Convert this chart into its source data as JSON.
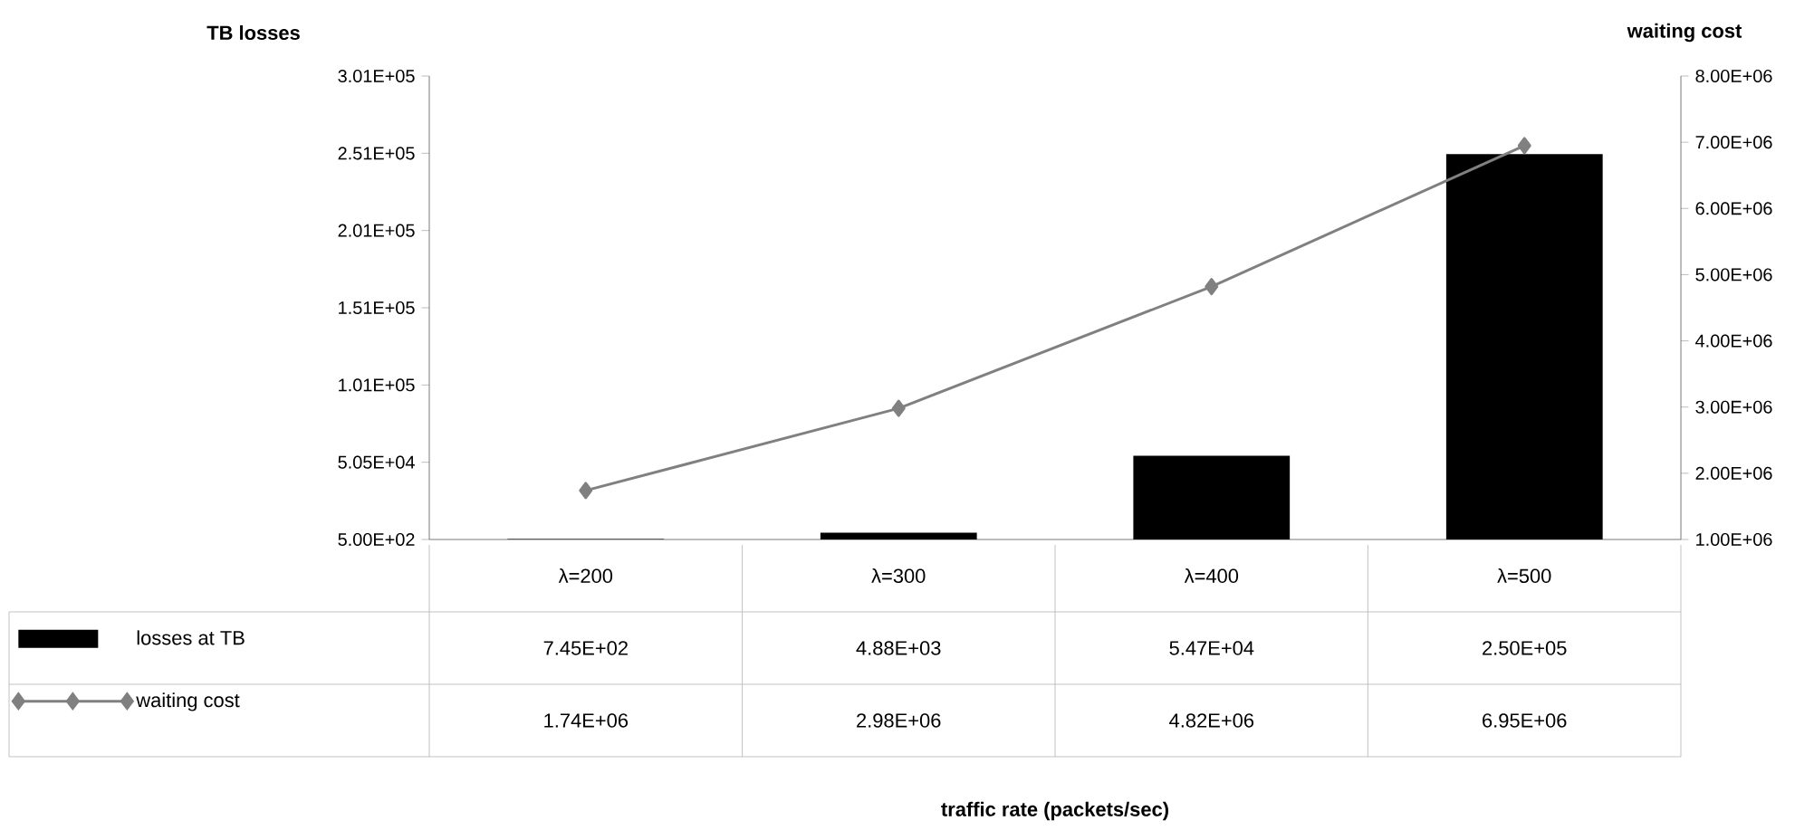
{
  "chart_data": {
    "type": "bar",
    "ylabel": "TB losses",
    "y2label": "waiting cost",
    "annotations": [
      "traffic rate (packets/sec)"
    ],
    "categories": [
      "λ=200",
      "λ=300",
      "λ=400",
      "λ=500"
    ],
    "series": [
      {
        "name": "losses at TB",
        "type": "bar",
        "color": "#000000",
        "values": [
          745,
          4880,
          54700,
          250000
        ],
        "value_labels": [
          "7.45E+02",
          "4.88E+03",
          "5.47E+04",
          "2.50E+05"
        ]
      },
      {
        "name": "waiting cost",
        "type": "line",
        "axis": "y2",
        "color": "#808080",
        "marker": "diamond",
        "values": [
          1740000,
          2980000,
          4820000,
          6950000
        ],
        "value_labels": [
          "1.74E+06",
          "2.98E+06",
          "4.82E+06",
          "6.95E+06"
        ]
      }
    ],
    "ylim": [
      500,
      300500
    ],
    "yticks": [
      {
        "value": 500,
        "label": "5.00E+02"
      },
      {
        "value": 50500,
        "label": "5.05E+04"
      },
      {
        "value": 100500,
        "label": "1.01E+05"
      },
      {
        "value": 150500,
        "label": "1.51E+05"
      },
      {
        "value": 200500,
        "label": "2.01E+05"
      },
      {
        "value": 250500,
        "label": "2.51E+05"
      },
      {
        "value": 300500,
        "label": "3.01E+05"
      }
    ],
    "y2lim": [
      1000000,
      8000000
    ],
    "y2ticks": [
      {
        "value": 1000000,
        "label": "1.00E+06"
      },
      {
        "value": 2000000,
        "label": "2.00E+06"
      },
      {
        "value": 3000000,
        "label": "3.00E+06"
      },
      {
        "value": 4000000,
        "label": "4.00E+06"
      },
      {
        "value": 5000000,
        "label": "5.00E+06"
      },
      {
        "value": 6000000,
        "label": "6.00E+06"
      },
      {
        "value": 7000000,
        "label": "7.00E+06"
      },
      {
        "value": 8000000,
        "label": "8.00E+06"
      }
    ],
    "grid": false,
    "legend": "bottom"
  }
}
